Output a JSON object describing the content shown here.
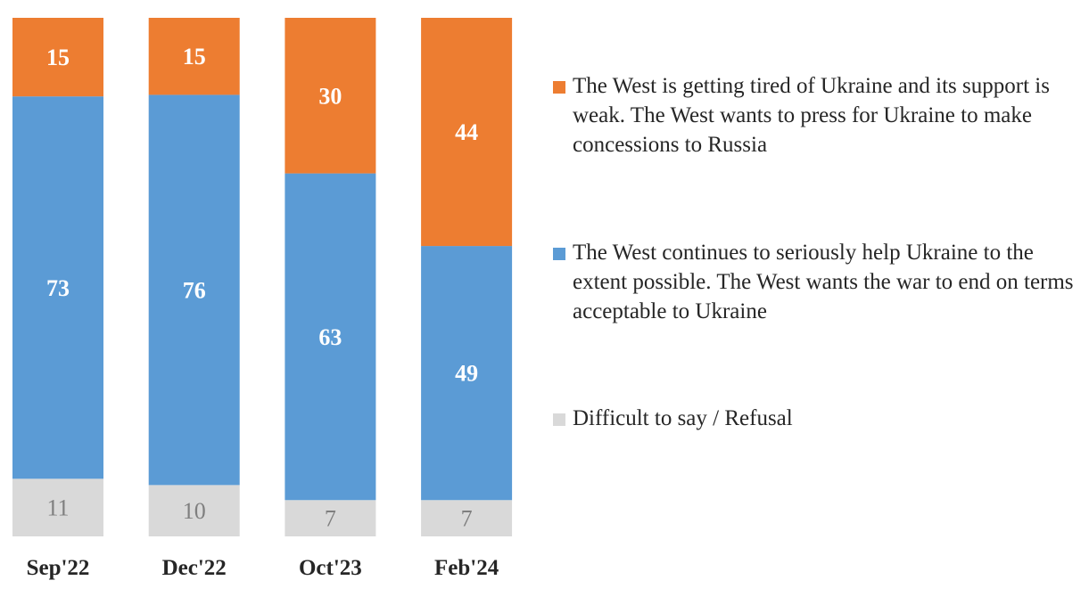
{
  "chart_data": {
    "type": "bar",
    "stacked": true,
    "categories": [
      "Sep'22",
      "Dec'22",
      "Oct'23",
      "Feb'24"
    ],
    "series": [
      {
        "name": "Difficult to say / Refusal",
        "color": "#D9D9D9",
        "label_color": "#7F7F7F",
        "values": [
          11,
          10,
          7,
          7
        ]
      },
      {
        "name": "The West continues to seriously help Ukraine to the extent possible. The West wants the war to end on terms acceptable to Ukraine",
        "color": "#5B9BD5",
        "label_color": "#FFFFFF",
        "values": [
          73,
          76,
          63,
          49
        ]
      },
      {
        "name": "The West is getting tired of Ukraine and its support is weak. The West wants to press for Ukraine to make concessions to Russia",
        "color": "#ED7D31",
        "label_color": "#FFFFFF",
        "values": [
          15,
          15,
          30,
          44
        ]
      }
    ],
    "title": "",
    "xlabel": "",
    "ylabel": "",
    "ylim": [
      0,
      100
    ],
    "grid": false,
    "legend_position": "right"
  }
}
